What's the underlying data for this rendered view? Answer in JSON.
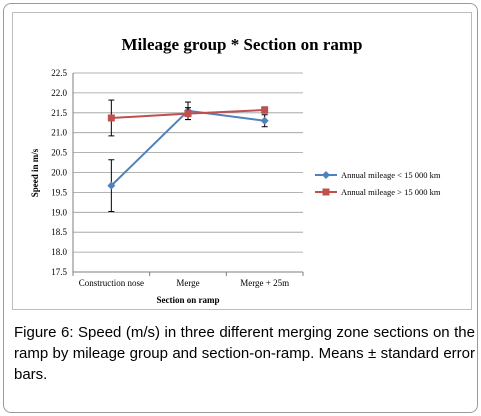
{
  "chart_data": {
    "type": "line",
    "title": "Mileage group * Section on ramp",
    "xlabel": "Section on ramp",
    "ylabel": "Speed in m/s",
    "categories": [
      "Construction nose",
      "Merge",
      "Merge + 25m"
    ],
    "ylim": [
      17.5,
      22.5
    ],
    "yticks": [
      "17.5",
      "18.0",
      "18.5",
      "19.0",
      "19.5",
      "20.0",
      "20.5",
      "21.0",
      "21.5",
      "22.0",
      "22.5"
    ],
    "grid": true,
    "legend_position": "right",
    "series": [
      {
        "name": "Annual mileage < 15 000 km",
        "values": [
          19.67,
          21.55,
          21.3
        ],
        "errors": [
          0.65,
          0.22,
          0.15
        ],
        "color": "#4f81bd",
        "marker": "diamond"
      },
      {
        "name": "Annual mileage > 15 000 km",
        "values": [
          21.37,
          21.48,
          21.57
        ],
        "errors": [
          0.45,
          0.15,
          0.08
        ],
        "color": "#c0504d",
        "marker": "square"
      }
    ]
  },
  "caption": {
    "label": "Figure 6:",
    "text": " Speed (m/s) in three different merging zone sections on the ramp by mileage group and section-on-ramp. Means ± standard error bars."
  }
}
